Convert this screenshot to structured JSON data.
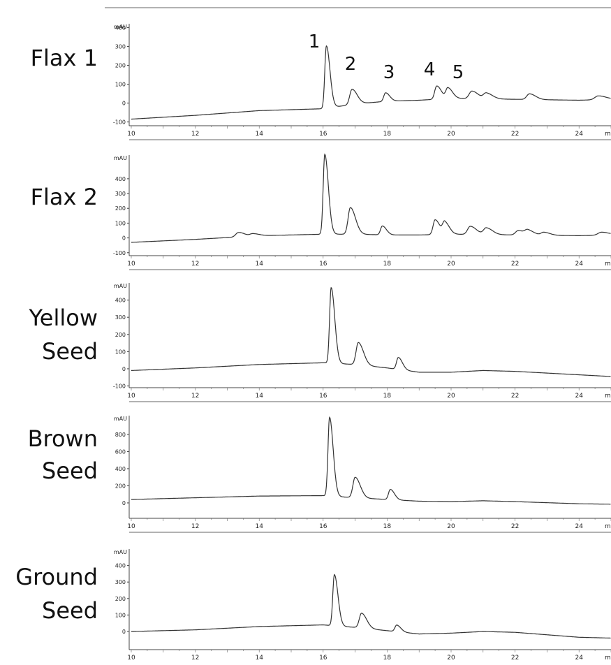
{
  "chart_data": [
    {
      "type": "line",
      "row_label": [
        "Flax 1"
      ],
      "y_unit": "mAU",
      "x_unit": "mi",
      "xlim": [
        10,
        25
      ],
      "ylim": [
        -120,
        420
      ],
      "y_ticks": [
        -100,
        0,
        100,
        200,
        300,
        400
      ],
      "x_ticks": [
        10,
        12,
        14,
        16,
        18,
        20,
        22,
        24
      ],
      "baseline": [
        [
          10,
          -85
        ],
        [
          12,
          -65
        ],
        [
          14,
          -40
        ],
        [
          15,
          -35
        ],
        [
          16,
          -30
        ],
        [
          17,
          -5
        ],
        [
          18,
          10
        ],
        [
          19,
          15
        ],
        [
          20,
          25
        ],
        [
          22,
          20
        ],
        [
          24,
          15
        ],
        [
          25,
          20
        ]
      ],
      "peaks": [
        [
          16.1,
          330,
          0.07
        ],
        [
          16.9,
          80,
          0.1
        ],
        [
          17.95,
          45,
          0.08
        ],
        [
          19.55,
          70,
          0.09
        ],
        [
          19.9,
          55,
          0.09
        ],
        [
          20.65,
          40,
          0.12
        ],
        [
          21.1,
          30,
          0.12
        ],
        [
          22.45,
          30,
          0.12
        ],
        [
          24.6,
          20,
          0.15
        ]
      ],
      "peak_labels": [
        {
          "text": "1",
          "x": 16.1
        },
        {
          "text": "2",
          "x": 16.9
        },
        {
          "text": "3",
          "x": 17.95
        },
        {
          "text": "4",
          "x": 19.55
        },
        {
          "text": "5",
          "x": 19.9
        }
      ]
    },
    {
      "type": "line",
      "row_label": [
        "Flax 2"
      ],
      "y_unit": "mAU",
      "x_unit": "mi",
      "xlim": [
        10,
        25
      ],
      "ylim": [
        -120,
        560
      ],
      "y_ticks": [
        -100,
        0,
        100,
        200,
        300,
        400
      ],
      "x_ticks": [
        10,
        12,
        14,
        16,
        18,
        20,
        22,
        24
      ],
      "baseline": [
        [
          10,
          -30
        ],
        [
          12,
          -10
        ],
        [
          14,
          15
        ],
        [
          15,
          20
        ],
        [
          16,
          25
        ],
        [
          17,
          25
        ],
        [
          18,
          20
        ],
        [
          19,
          20
        ],
        [
          20,
          25
        ],
        [
          22,
          20
        ],
        [
          24,
          15
        ],
        [
          25,
          20
        ]
      ],
      "peaks": [
        [
          13.35,
          30,
          0.12
        ],
        [
          13.8,
          15,
          0.12
        ],
        [
          16.05,
          540,
          0.07
        ],
        [
          16.85,
          180,
          0.1
        ],
        [
          17.85,
          60,
          0.08
        ],
        [
          19.5,
          100,
          0.09
        ],
        [
          19.8,
          80,
          0.09
        ],
        [
          20.6,
          55,
          0.12
        ],
        [
          21.1,
          45,
          0.12
        ],
        [
          22.1,
          30,
          0.12
        ],
        [
          22.4,
          30,
          0.12
        ],
        [
          22.9,
          20,
          0.12
        ],
        [
          24.7,
          20,
          0.15
        ]
      ],
      "peak_labels": []
    },
    {
      "type": "line",
      "row_label": [
        "Yellow",
        "Seed"
      ],
      "y_unit": "mAU",
      "x_unit": "mi",
      "xlim": [
        10,
        25
      ],
      "ylim": [
        -110,
        500
      ],
      "y_ticks": [
        -100,
        0,
        100,
        200,
        300,
        400
      ],
      "x_ticks": [
        10,
        12,
        14,
        16,
        18,
        20,
        22,
        24
      ],
      "baseline": [
        [
          10,
          -10
        ],
        [
          12,
          5
        ],
        [
          14,
          25
        ],
        [
          16,
          35
        ],
        [
          17,
          25
        ],
        [
          18,
          5
        ],
        [
          19,
          -20
        ],
        [
          20,
          -20
        ],
        [
          21,
          -10
        ],
        [
          22,
          -15
        ],
        [
          24,
          -35
        ],
        [
          25,
          -45
        ]
      ],
      "peaks": [
        [
          16.25,
          440,
          0.07
        ],
        [
          17.1,
          130,
          0.1
        ],
        [
          18.35,
          70,
          0.08
        ]
      ],
      "peak_labels": []
    },
    {
      "type": "line",
      "row_label": [
        "Brown",
        "Seed"
      ],
      "y_unit": "mAU",
      "x_unit": "mi",
      "xlim": [
        10,
        25
      ],
      "ylim": [
        -180,
        1020
      ],
      "y_ticks": [
        0,
        200,
        400,
        600,
        800
      ],
      "x_ticks": [
        10,
        12,
        14,
        16,
        18,
        20,
        22,
        24
      ],
      "baseline": [
        [
          10,
          40
        ],
        [
          12,
          60
        ],
        [
          14,
          80
        ],
        [
          16,
          85
        ],
        [
          17,
          60
        ],
        [
          18,
          40
        ],
        [
          19,
          20
        ],
        [
          20,
          15
        ],
        [
          21,
          25
        ],
        [
          22,
          15
        ],
        [
          24,
          -10
        ],
        [
          25,
          -15
        ]
      ],
      "peaks": [
        [
          16.2,
          920,
          0.07
        ],
        [
          17.0,
          240,
          0.1
        ],
        [
          18.1,
          120,
          0.08
        ]
      ],
      "peak_labels": []
    },
    {
      "type": "line",
      "row_label": [
        "Ground",
        "Seed"
      ],
      "y_unit": "mAU",
      "x_unit": "mi",
      "xlim": [
        10,
        25
      ],
      "ylim": [
        -110,
        500
      ],
      "y_ticks": [
        0,
        100,
        200,
        300,
        400
      ],
      "x_ticks": [
        10,
        12,
        14,
        16,
        18,
        20,
        22,
        24
      ],
      "baseline": [
        [
          10,
          0
        ],
        [
          12,
          10
        ],
        [
          14,
          30
        ],
        [
          16,
          40
        ],
        [
          17,
          25
        ],
        [
          18,
          5
        ],
        [
          19,
          -15
        ],
        [
          20,
          -10
        ],
        [
          21,
          0
        ],
        [
          22,
          -5
        ],
        [
          24,
          -35
        ],
        [
          25,
          -40
        ]
      ],
      "peaks": [
        [
          16.35,
          310,
          0.07
        ],
        [
          17.2,
          90,
          0.1
        ],
        [
          18.3,
          40,
          0.08
        ]
      ],
      "peak_labels": []
    }
  ]
}
